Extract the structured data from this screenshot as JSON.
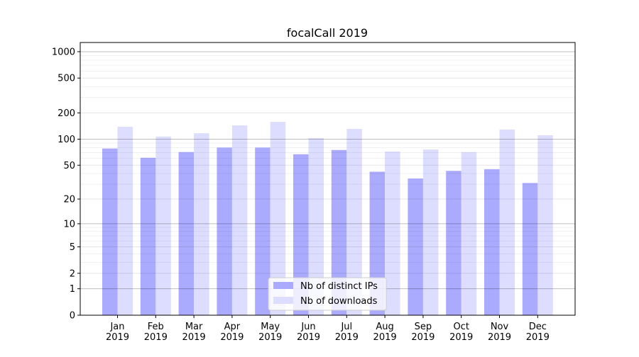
{
  "chart_data": {
    "type": "bar",
    "title": "focalCall 2019",
    "xlabel": "",
    "ylabel": "",
    "yscale": "log(1+y)",
    "ylim": [
      0,
      1200
    ],
    "yticks": [
      0,
      1,
      2,
      5,
      10,
      20,
      50,
      100,
      200,
      500,
      1000
    ],
    "grid": true,
    "legend_position": "bottom-center",
    "categories": [
      "Jan\n2019",
      "Feb\n2019",
      "Mar\n2019",
      "Apr\n2019",
      "May\n2019",
      "Jun\n2019",
      "Jul\n2019",
      "Aug\n2019",
      "Sep\n2019",
      "Oct\n2019",
      "Nov\n2019",
      "Dec\n2019"
    ],
    "series": [
      {
        "name": "Nb of distinct IPs",
        "color": "#aaaaff",
        "values": [
          78,
          61,
          71,
          80,
          80,
          67,
          75,
          42,
          35,
          43,
          45,
          31
        ]
      },
      {
        "name": "Nb of downloads",
        "color": "#ddddff",
        "values": [
          139,
          107,
          117,
          144,
          158,
          103,
          131,
          72,
          76,
          71,
          129,
          111
        ]
      }
    ]
  }
}
